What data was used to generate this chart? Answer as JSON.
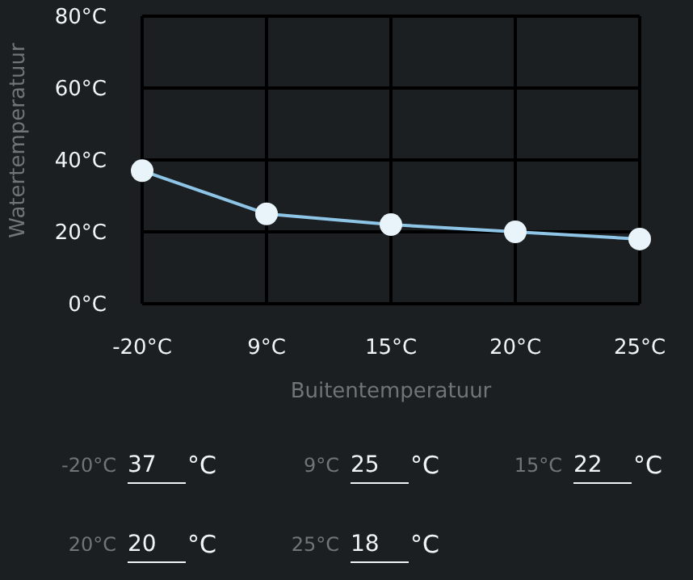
{
  "chart_data": [
    {
      "type": "line",
      "xlabel": "Buitentemperatuur",
      "ylabel": "Watertemperatuur",
      "categories": [
        "-20°C",
        "9°C",
        "15°C",
        "20°C",
        "25°C"
      ],
      "series": [
        {
          "color": "#8ec5e6",
          "values": [
            37,
            25,
            22,
            20,
            18
          ]
        }
      ],
      "ylim": [
        0,
        80
      ],
      "yticks": [
        {
          "value": 0,
          "label": "0°C"
        },
        {
          "value": 20,
          "label": "20°C"
        },
        {
          "value": 40,
          "label": "40°C"
        },
        {
          "value": 60,
          "label": "60°C"
        },
        {
          "value": 80,
          "label": "80°C"
        }
      ],
      "grid": true,
      "marker": "circle",
      "line_style": "solid"
    },
    {
      "type": "other",
      "categories": [
        "-20°C",
        "9°C",
        "15°C",
        "20°C",
        "25°C"
      ],
      "values": [
        37,
        25,
        22,
        20,
        18
      ],
      "data_labels": true,
      "annotations": [
        "°C"
      ]
    }
  ]
}
